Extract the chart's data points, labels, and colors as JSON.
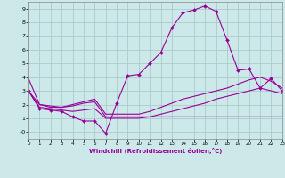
{
  "title": "",
  "xlabel": "Windchill (Refroidissement éolien,°C)",
  "ylabel": "",
  "bg_color": "#cce8e8",
  "grid_color": "#aacccc",
  "line_color": "#990099",
  "xlim": [
    0,
    23
  ],
  "ylim": [
    -0.5,
    9.5
  ],
  "xticks": [
    0,
    1,
    2,
    3,
    4,
    5,
    6,
    7,
    8,
    9,
    10,
    11,
    12,
    13,
    14,
    15,
    16,
    17,
    18,
    19,
    20,
    21,
    22,
    23
  ],
  "yticks": [
    0,
    1,
    2,
    3,
    4,
    5,
    6,
    7,
    8,
    9
  ],
  "ytick_labels": [
    "-0",
    "1",
    "2",
    "3",
    "4",
    "5",
    "6",
    "7",
    "8",
    "9"
  ],
  "line1_x": [
    0,
    1,
    2,
    3,
    4,
    5,
    6,
    7,
    8,
    9,
    10,
    11,
    12,
    13,
    14,
    15,
    16,
    17,
    18,
    19,
    20,
    21,
    22,
    23
  ],
  "line1_y": [
    3.0,
    1.7,
    1.6,
    1.5,
    1.1,
    0.8,
    0.8,
    -0.1,
    2.1,
    4.1,
    4.2,
    5.0,
    5.8,
    7.6,
    8.7,
    8.9,
    9.2,
    8.8,
    6.7,
    4.5,
    4.6,
    3.2,
    3.9,
    3.0
  ],
  "line2_x": [
    0,
    1,
    2,
    3,
    4,
    5,
    6,
    7,
    8,
    9,
    10,
    11,
    12,
    13,
    14,
    15,
    16,
    17,
    18,
    19,
    20,
    21,
    22,
    23
  ],
  "line2_y": [
    3.0,
    2.0,
    1.9,
    1.8,
    2.0,
    2.2,
    2.4,
    1.3,
    1.3,
    1.3,
    1.3,
    1.5,
    1.8,
    2.1,
    2.4,
    2.6,
    2.8,
    3.0,
    3.2,
    3.5,
    3.8,
    4.0,
    3.7,
    3.2
  ],
  "line3_x": [
    0,
    1,
    2,
    3,
    4,
    5,
    6,
    7,
    8,
    9,
    10,
    11,
    12,
    13,
    14,
    15,
    16,
    17,
    18,
    19,
    20,
    21,
    22,
    23
  ],
  "line3_y": [
    3.0,
    1.8,
    1.7,
    1.6,
    1.5,
    1.6,
    1.7,
    1.0,
    1.0,
    1.0,
    1.0,
    1.1,
    1.3,
    1.5,
    1.7,
    1.9,
    2.1,
    2.4,
    2.6,
    2.8,
    3.0,
    3.2,
    3.0,
    2.8
  ],
  "line4_x": [
    0,
    1,
    2,
    3,
    4,
    5,
    6,
    7,
    8,
    9,
    10,
    11,
    12,
    13,
    14,
    15,
    16,
    17,
    18,
    19,
    20,
    21,
    22,
    23
  ],
  "line4_y": [
    3.9,
    2.0,
    1.8,
    1.8,
    1.9,
    2.1,
    2.2,
    1.1,
    1.1,
    1.1,
    1.1,
    1.1,
    1.1,
    1.1,
    1.1,
    1.1,
    1.1,
    1.1,
    1.1,
    1.1,
    1.1,
    1.1,
    1.1,
    1.1
  ]
}
